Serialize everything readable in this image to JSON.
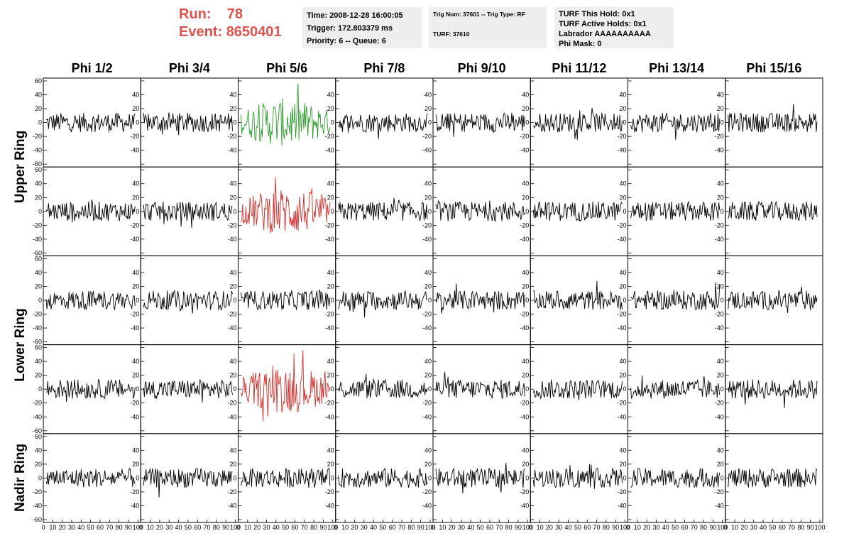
{
  "run": {
    "run_label": "Run:",
    "run_value": "78",
    "event_label": "Event:",
    "event_value": "8650401"
  },
  "header_time": {
    "time": "Time: 2008-12-28 16:00:05",
    "trigger": "Trigger: 172.803379 ms",
    "priority": "Priority: 6 -- Queue: 6"
  },
  "header_trig": {
    "trig": "Trig Num: 37601 -- Trig Type: RF",
    "turf": "TURF: 37610"
  },
  "header_turf": {
    "this_hold": "TURF This Hold: 0x1",
    "active_holds": "TURF Active Holds: 0x1",
    "labrador": "Labrador AAAAAAAAAA",
    "phi_mask": "Phi Mask: 0"
  },
  "columns": [
    "Phi 1/2",
    "Phi 3/4",
    "Phi 5/6",
    "Phi 7/8",
    "Phi 9/10",
    "Phi 11/12",
    "Phi 13/14",
    "Phi 15/16"
  ],
  "ring_labels": [
    "Upper Ring",
    "Lower Ring",
    "Nadir Ring"
  ],
  "y_ticks": [
    "60",
    "40",
    "20",
    "0",
    "-20",
    "-40",
    "-60"
  ],
  "x_ticks": [
    "0",
    "10",
    "20",
    "30",
    "40",
    "50",
    "60",
    "70",
    "80",
    "90",
    "100"
  ],
  "colors": {
    "normal": "#000000",
    "triggered_green": "#2e9a2e",
    "triggered_red": "#d0312d",
    "header_red": "#d9534f"
  },
  "chart_data": {
    "type": "line",
    "description_rows": 5,
    "description_cols": 8,
    "xlim": [
      0,
      100
    ],
    "ylim": [
      -60,
      60
    ],
    "highlighted_panels": [
      {
        "row": 0,
        "col": 2,
        "color": "green",
        "amplitude": 30
      },
      {
        "row": 1,
        "col": 2,
        "color": "red",
        "amplitude": 30
      },
      {
        "row": 3,
        "col": 2,
        "color": "red",
        "amplitude": 30
      }
    ],
    "default_amplitude": 14
  }
}
